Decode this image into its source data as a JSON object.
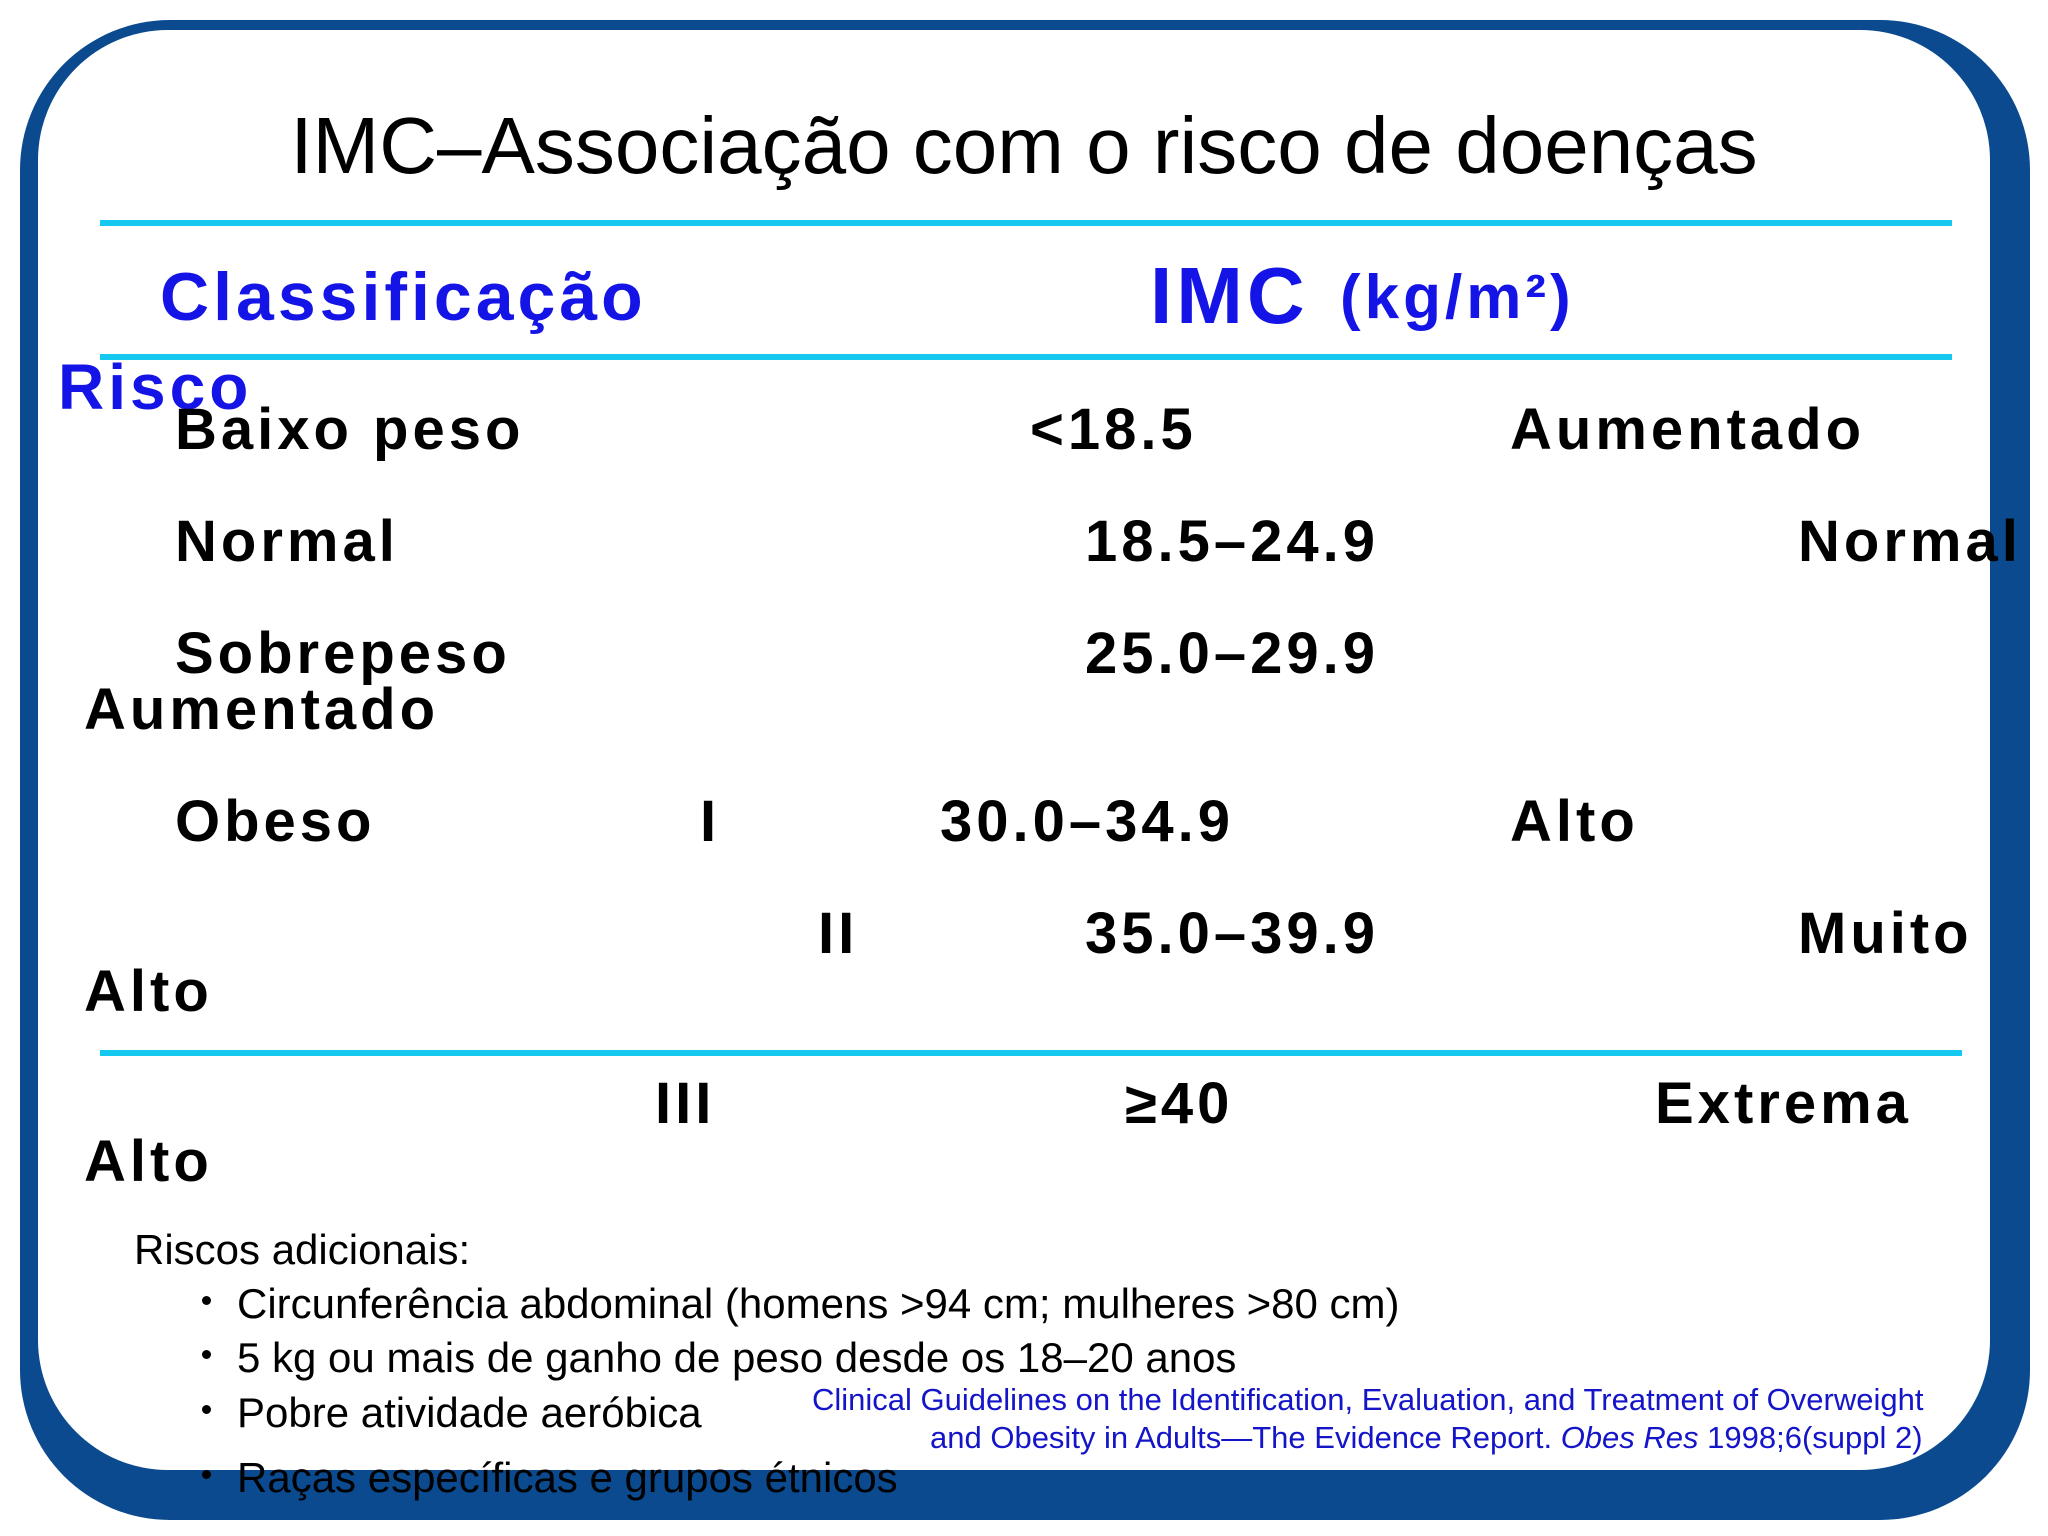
{
  "slide": {
    "title": "IMC–Associação com o risco de doenças",
    "headers": {
      "classification": "Classificação",
      "imc": "IMC",
      "unit": "(kg/m²)",
      "risk": "Risco"
    },
    "rows": [
      {
        "classification": "Baixo peso",
        "class_level": "",
        "imc": "<18.5",
        "risk": "Aumentado"
      },
      {
        "classification": "Normal",
        "class_level": "",
        "imc": "18.5–24.9",
        "risk": "Normal"
      },
      {
        "classification": "Sobrepeso",
        "class_level": "",
        "imc": "25.0–29.9",
        "risk": "Aumentado"
      },
      {
        "classification": "Obeso",
        "class_level": "I",
        "imc": "30.0–34.9",
        "risk": "Alto"
      },
      {
        "classification": "",
        "class_level": "II",
        "imc": "35.0–39.9",
        "risk_line1": "Muito",
        "risk_line2": "Alto"
      },
      {
        "classification": "",
        "class_level": "III",
        "imc": "≥40",
        "risk_line1": "Extrema",
        "risk_line2": "Alto"
      }
    ],
    "additional": {
      "heading": "Riscos adicionais:",
      "items": [
        "Circunferência abdominal (homens >94 cm; mulheres >80 cm)",
        "5 kg ou mais de ganho de peso desde os 18–20 anos",
        "Pobre atividade aeróbica",
        "Raças específicas e grupos étnicos"
      ]
    },
    "reference": {
      "line1": "Clinical Guidelines on the Identification, Evaluation, and Treatment of Overweight",
      "line2_prefix": "and Obesity in Adults—The Evidence Report.",
      "journal": "Obes Res",
      "line2_suffix": "1998;6(suppl 2)"
    },
    "colors": {
      "frame": "#0b4a8f",
      "rule": "#14c8f0",
      "header": "#1414e6",
      "reference": "#1414c8"
    }
  }
}
